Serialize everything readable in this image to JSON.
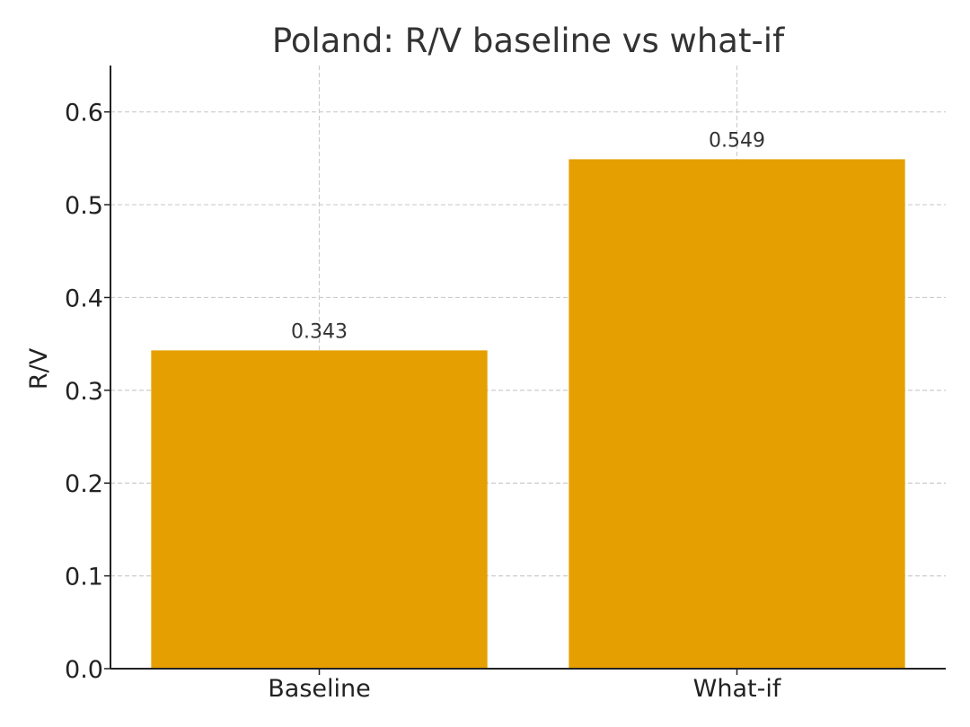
{
  "chart_data": {
    "type": "bar",
    "title": "Poland: R/V baseline vs what-if",
    "xlabel": "",
    "ylabel": "R/V",
    "categories": [
      "Baseline",
      "What-if"
    ],
    "values": [
      0.343,
      0.549
    ],
    "data_labels": [
      "0.343",
      "0.549"
    ],
    "ylim": [
      0,
      0.65
    ],
    "yticks": [
      0.0,
      0.1,
      0.2,
      0.3,
      0.4,
      0.5,
      0.6
    ],
    "ytick_labels": [
      "0.0",
      "0.1",
      "0.2",
      "0.3",
      "0.4",
      "0.5",
      "0.6"
    ],
    "grid": true,
    "bar_color": "#E69F00"
  }
}
